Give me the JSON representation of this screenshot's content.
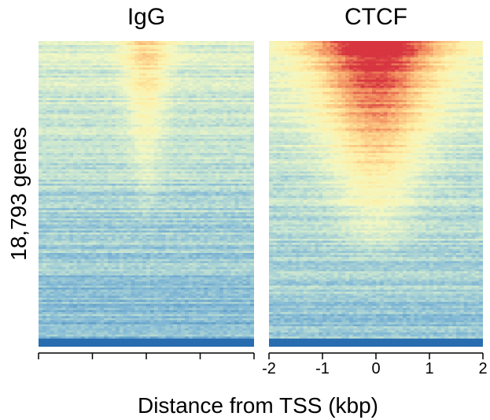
{
  "chart_data": {
    "type": "heatmap",
    "ylabel": "18,793 genes",
    "xlabel": "Distance from TSS (kbp)",
    "xlim": [
      -2,
      2
    ],
    "x_ticks": [
      -2,
      -1,
      0,
      1,
      2
    ],
    "x_tick_labels": [
      "-2",
      "-1",
      "0",
      "1",
      "2"
    ],
    "colormap": [
      "#2166ac",
      "#4d8fc0",
      "#86bbd6",
      "#c6e4d2",
      "#f2f7c3",
      "#fdf0a8",
      "#fcc883",
      "#f08a5d",
      "#d73540"
    ],
    "rows_sorted_by": "signal, descending",
    "panels": [
      {
        "title": "IgG",
        "show_tick_labels": false,
        "peak_intensity": 0.62,
        "peak_halfwidth_top_kbp": 0.33,
        "peak_halfwidth_bottom_kbp": 0.08,
        "background_intensity": 0.3
      },
      {
        "title": "CTCF",
        "show_tick_labels": true,
        "peak_intensity": 1.0,
        "peak_halfwidth_top_kbp": 0.95,
        "peak_halfwidth_bottom_kbp": 0.3,
        "background_intensity": 0.33
      }
    ]
  }
}
